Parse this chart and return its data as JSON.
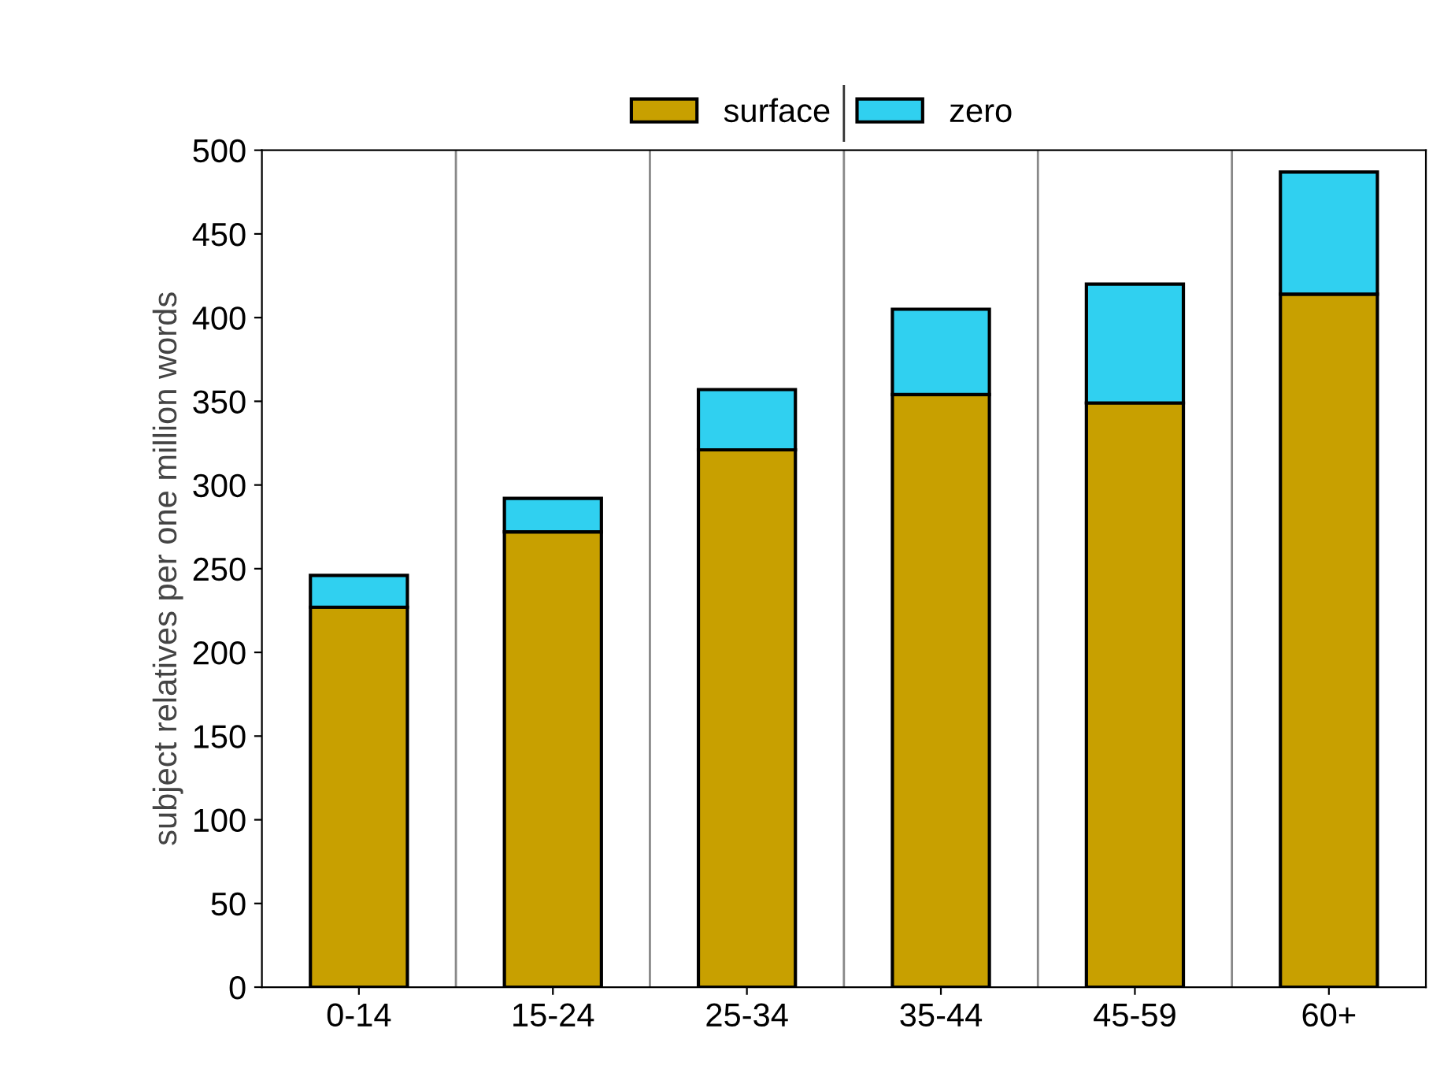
{
  "chart_data": {
    "type": "bar",
    "stacked": true,
    "ylabel": "subject relatives per one million words",
    "categories": [
      "0-14",
      "15-24",
      "25-34",
      "35-44",
      "45-59",
      "60+"
    ],
    "series": [
      {
        "name": "surface",
        "color": "#c8a000",
        "values": [
          227,
          272,
          321,
          354,
          349,
          414
        ]
      },
      {
        "name": "zero",
        "color": "#30d0f0",
        "values": [
          19,
          20,
          36,
          51,
          71,
          73
        ]
      }
    ],
    "ylim": [
      0,
      500
    ],
    "yticks": [
      0,
      50,
      100,
      150,
      200,
      250,
      300,
      350,
      400,
      450,
      500
    ],
    "grid": false,
    "legend": "top"
  }
}
